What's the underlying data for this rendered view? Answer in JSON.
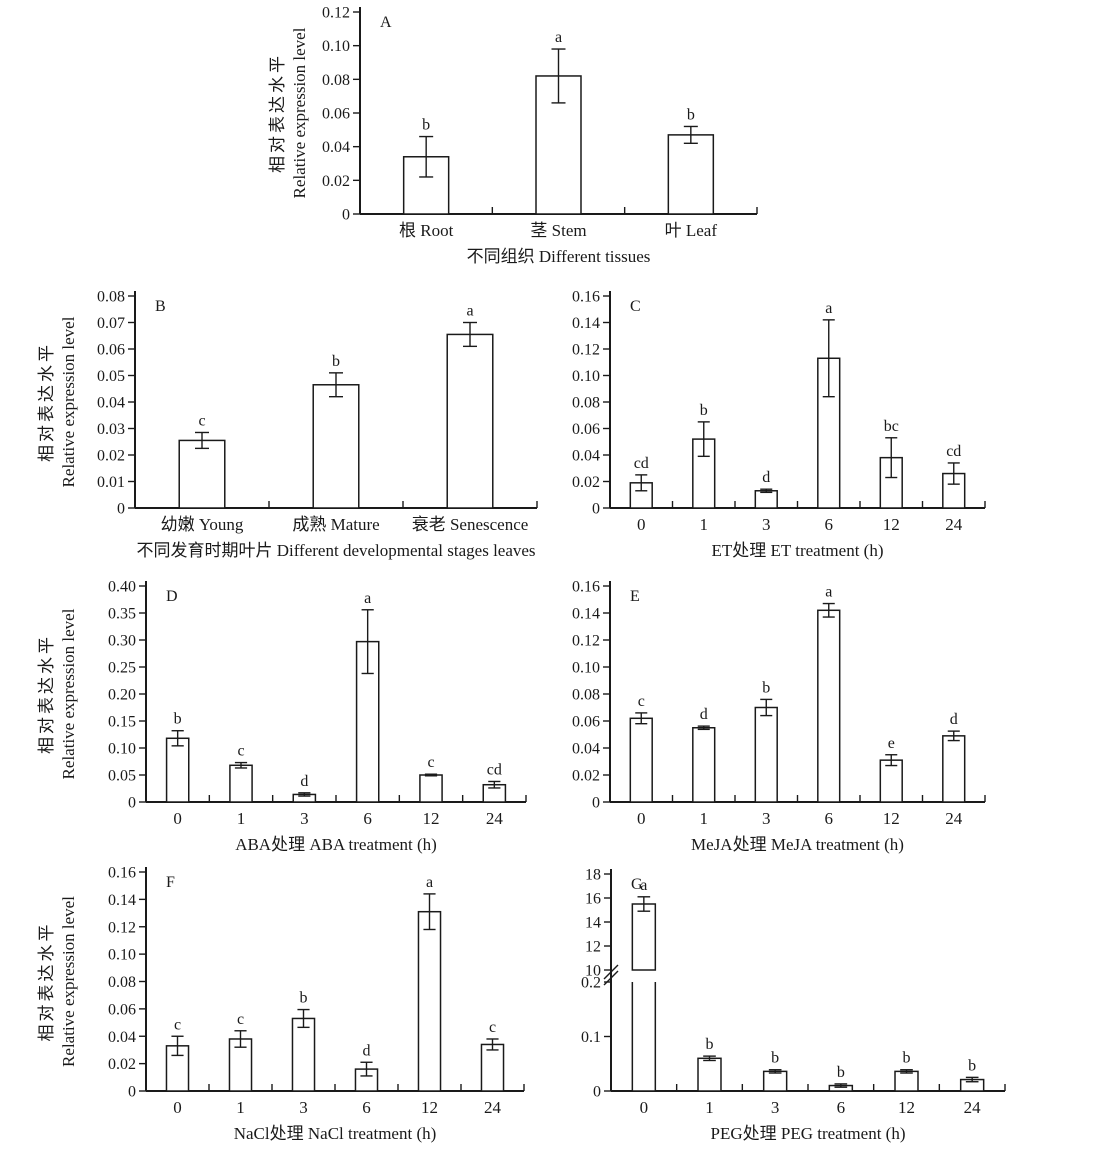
{
  "figure": {
    "background": "#ffffff",
    "ink_color": "#1a1a1a",
    "bar_fill": "#ffffff",
    "y_axis_title_zh": "相对表达水平",
    "y_axis_title_en": "Relative expression level"
  },
  "chart_data": [
    {
      "panel": "A",
      "type": "bar",
      "categories": [
        "根 Root",
        "茎 Stem",
        "叶 Leaf"
      ],
      "values": [
        0.034,
        0.082,
        0.047
      ],
      "errors": [
        0.012,
        0.016,
        0.005
      ],
      "sig_letters": [
        "b",
        "a",
        "b"
      ],
      "xlabel": "不同组织 Different tissues",
      "ylim": [
        0,
        0.12
      ],
      "yticks": [
        "0",
        "0.02",
        "0.04",
        "0.06",
        "0.08",
        "0.10",
        "0.12"
      ],
      "show_y_title": true,
      "grid": false
    },
    {
      "panel": "B",
      "type": "bar",
      "categories": [
        "幼嫩 Young",
        "成熟 Mature",
        "衰老 Senescence"
      ],
      "values": [
        0.0255,
        0.0465,
        0.0655
      ],
      "errors": [
        0.003,
        0.0045,
        0.0045
      ],
      "sig_letters": [
        "c",
        "b",
        "a"
      ],
      "xlabel": "不同发育时期叶片 Different developmental stages leaves",
      "ylim": [
        0,
        0.08
      ],
      "yticks": [
        "0",
        "0.01",
        "0.02",
        "0.03",
        "0.04",
        "0.05",
        "0.06",
        "0.07",
        "0.08"
      ],
      "show_y_title": true,
      "grid": false
    },
    {
      "panel": "C",
      "type": "bar",
      "categories": [
        "0",
        "1",
        "3",
        "6",
        "12",
        "24"
      ],
      "values": [
        0.019,
        0.052,
        0.013,
        0.113,
        0.038,
        0.026
      ],
      "errors": [
        0.006,
        0.013,
        0.0012,
        0.029,
        0.015,
        0.008
      ],
      "sig_letters": [
        "cd",
        "b",
        "d",
        "a",
        "bc",
        "cd"
      ],
      "xlabel": "ET处理 ET treatment (h)",
      "ylim": [
        0,
        0.16
      ],
      "yticks": [
        "0",
        "0.02",
        "0.04",
        "0.06",
        "0.08",
        "0.10",
        "0.12",
        "0.14",
        "0.16"
      ],
      "show_y_title": false,
      "grid": false
    },
    {
      "panel": "D",
      "type": "bar",
      "categories": [
        "0",
        "1",
        "3",
        "6",
        "12",
        "24"
      ],
      "values": [
        0.118,
        0.068,
        0.014,
        0.297,
        0.05,
        0.032
      ],
      "errors": [
        0.014,
        0.005,
        0.003,
        0.059,
        0.0015,
        0.006
      ],
      "sig_letters": [
        "b",
        "c",
        "d",
        "a",
        "c",
        "cd"
      ],
      "xlabel": "ABA处理 ABA treatment (h)",
      "ylim": [
        0,
        0.4
      ],
      "yticks": [
        "0",
        "0.05",
        "0.10",
        "0.15",
        "0.20",
        "0.25",
        "0.30",
        "0.35",
        "0.40"
      ],
      "show_y_title": true,
      "grid": false
    },
    {
      "panel": "E",
      "type": "bar",
      "categories": [
        "0",
        "1",
        "3",
        "6",
        "12",
        "24"
      ],
      "values": [
        0.062,
        0.055,
        0.07,
        0.142,
        0.031,
        0.049
      ],
      "errors": [
        0.004,
        0.0012,
        0.006,
        0.005,
        0.004,
        0.0035
      ],
      "sig_letters": [
        "c",
        "d",
        "b",
        "a",
        "e",
        "d"
      ],
      "xlabel": "MeJA处理 MeJA treatment (h)",
      "ylim": [
        0,
        0.16
      ],
      "yticks": [
        "0",
        "0.02",
        "0.04",
        "0.06",
        "0.08",
        "0.10",
        "0.12",
        "0.14",
        "0.16"
      ],
      "show_y_title": false,
      "grid": false
    },
    {
      "panel": "F",
      "type": "bar",
      "categories": [
        "0",
        "1",
        "3",
        "6",
        "12",
        "24"
      ],
      "values": [
        0.033,
        0.038,
        0.053,
        0.016,
        0.131,
        0.034
      ],
      "errors": [
        0.007,
        0.006,
        0.0065,
        0.005,
        0.013,
        0.004
      ],
      "sig_letters": [
        "c",
        "c",
        "b",
        "d",
        "a",
        "c"
      ],
      "xlabel": "NaCl处理 NaCl treatment (h)",
      "ylim": [
        0,
        0.16
      ],
      "yticks": [
        "0",
        "0.02",
        "0.04",
        "0.06",
        "0.08",
        "0.10",
        "0.12",
        "0.14",
        "0.16"
      ],
      "show_y_title": true,
      "grid": false
    },
    {
      "panel": "G",
      "type": "bar",
      "axis_break": true,
      "categories": [
        "0",
        "1",
        "3",
        "6",
        "12",
        "24"
      ],
      "values": [
        15.5,
        0.06,
        0.036,
        0.01,
        0.036,
        0.021
      ],
      "errors": [
        0.6,
        0.004,
        0.003,
        0.003,
        0.003,
        0.004
      ],
      "sig_letters": [
        "a",
        "b",
        "b",
        "b",
        "b",
        "b"
      ],
      "xlabel": "PEG处理 PEG treatment (h)",
      "upper_ylim": [
        10,
        18
      ],
      "upper_yticks": [
        "10",
        "12",
        "14",
        "16",
        "18"
      ],
      "lower_ylim": [
        0,
        0.2
      ],
      "lower_yticks": [
        "0",
        "0.1",
        "0.2"
      ],
      "show_y_title": false,
      "grid": false
    }
  ]
}
